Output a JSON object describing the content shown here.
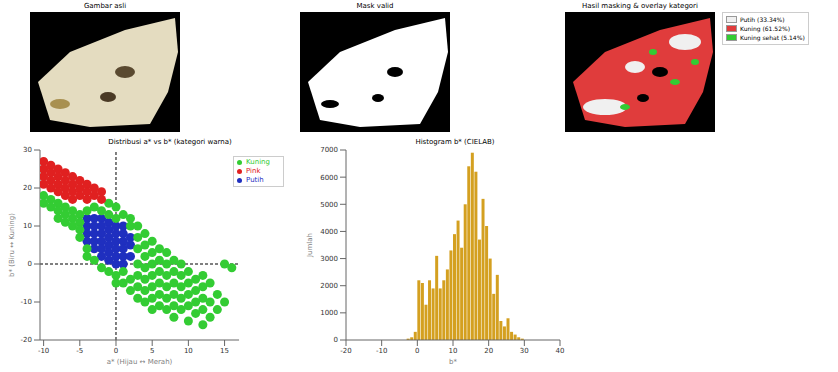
{
  "images": [
    {
      "title": "Gambar asli"
    },
    {
      "title": "Mask valid"
    },
    {
      "title": "Hasil masking & overlay kategori"
    }
  ],
  "overlay_legend": [
    {
      "label": "Putih (33.34%)",
      "color": "#f0f0f0"
    },
    {
      "label": "Kuning (61.52%)",
      "color": "#e03c3c"
    },
    {
      "label": "Kuning sehat (5.14%)",
      "color": "#33cc33"
    }
  ],
  "chart_data": [
    {
      "type": "scatter",
      "title": "Distribusi a* vs b* (kategori warna)",
      "x_label": "a* (Hijau ↔ Merah)",
      "y_label": "b* (Biru ↔ Kuning)",
      "xlim": [
        -10.5,
        17
      ],
      "xticks": [
        -10,
        -5,
        0,
        5,
        10,
        15
      ],
      "ylim": [
        -20,
        30
      ],
      "yticks": [
        -20,
        -10,
        0,
        10,
        20,
        30
      ],
      "grid": false,
      "legend": "upper right",
      "marker": "circle",
      "vlines": [
        0
      ],
      "hlines": [
        0
      ],
      "series": [
        {
          "name": "Putih",
          "color": "#1f2fbf",
          "x": [
            -4,
            -4,
            -4,
            -4,
            -3,
            -3,
            -3,
            -3,
            -3,
            -2,
            -2,
            -2,
            -2,
            -2,
            -2,
            -1,
            -1,
            -1,
            -1,
            -1,
            -1,
            0,
            0,
            0,
            0,
            0,
            0,
            1,
            1,
            1,
            1,
            1,
            1,
            2,
            2,
            2
          ],
          "y": [
            12,
            10,
            8,
            6,
            12,
            10,
            8,
            6,
            4,
            12,
            10,
            8,
            6,
            4,
            2,
            11,
            9,
            7,
            5,
            3,
            1,
            10,
            8,
            6,
            4,
            2,
            0,
            10,
            8,
            6,
            4,
            2,
            0,
            7,
            5,
            2
          ]
        },
        {
          "name": "Kuning",
          "color": "#33cc33",
          "x": [
            -10,
            -10,
            -9,
            -9,
            -8,
            -8,
            -8,
            -7,
            -7,
            -7,
            -6,
            -6,
            -6,
            -5,
            -5,
            -5,
            -5,
            -4,
            -4,
            -4,
            -3,
            -3,
            -2,
            -2,
            -1,
            -1,
            -1,
            0,
            0,
            0,
            0,
            1,
            1,
            1,
            2,
            2,
            2,
            2,
            3,
            3,
            3,
            3,
            3,
            3,
            3,
            4,
            4,
            4,
            4,
            4,
            4,
            4,
            5,
            5,
            5,
            5,
            5,
            5,
            5,
            6,
            6,
            6,
            6,
            6,
            6,
            7,
            7,
            7,
            7,
            7,
            7,
            8,
            8,
            8,
            8,
            8,
            8,
            9,
            9,
            9,
            9,
            9,
            10,
            10,
            10,
            10,
            10,
            11,
            11,
            11,
            11,
            12,
            12,
            12,
            12,
            12,
            13,
            13,
            13,
            14,
            14,
            15,
            15,
            16
          ],
          "y": [
            18,
            16,
            17,
            15,
            16,
            14,
            12,
            15,
            13,
            11,
            14,
            12,
            10,
            13,
            11,
            9,
            7,
            14,
            4,
            2,
            15,
            1,
            14,
            -1,
            16,
            13,
            -2,
            15,
            12,
            -3,
            -5,
            13,
            -2,
            -5,
            12,
            10,
            -4,
            -7,
            10,
            7,
            4,
            0,
            -3,
            -6,
            -9,
            8,
            5,
            2,
            -1,
            -4,
            -7,
            -10,
            6,
            3,
            0,
            -3,
            -6,
            -9,
            -12,
            4,
            1,
            -2,
            -5,
            -8,
            -11,
            3,
            0,
            -3,
            -6,
            -9,
            -12,
            1,
            -2,
            -5,
            -8,
            -11,
            -14,
            0,
            -3,
            -6,
            -9,
            -12,
            -2,
            -5,
            -8,
            -11,
            -15,
            -4,
            -7,
            -10,
            -13,
            -3,
            -6,
            -9,
            -12,
            -16,
            -5,
            -10,
            -14,
            -8,
            -12,
            0,
            -10,
            -1
          ]
        },
        {
          "name": "Pink",
          "color": "#e02020",
          "x": [
            -10,
            -10,
            -10,
            -10,
            -9,
            -9,
            -9,
            -9,
            -8,
            -8,
            -8,
            -8,
            -7,
            -7,
            -7,
            -7,
            -6,
            -6,
            -6,
            -6,
            -5,
            -5,
            -5,
            -4,
            -4,
            -4,
            -3,
            -3,
            -2,
            -2
          ],
          "y": [
            27,
            25,
            23,
            21,
            26,
            24,
            22,
            20,
            25,
            23,
            21,
            19,
            24,
            22,
            20,
            18,
            23,
            21,
            19,
            17,
            22,
            20,
            18,
            21,
            19,
            17,
            20,
            18,
            19,
            17
          ]
        }
      ]
    },
    {
      "type": "histogram",
      "title": "Histogram b* (CIELAB)",
      "x_label": "b*",
      "y_label": "Jumlah",
      "xlim": [
        -20,
        40
      ],
      "xticks": [
        -20,
        -10,
        0,
        10,
        20,
        30,
        40
      ],
      "ylim": [
        0,
        7000
      ],
      "yticks": [
        0,
        1000,
        2000,
        3000,
        4000,
        5000,
        6000,
        7000
      ],
      "grid": false,
      "color": "#d4a020",
      "bins": [
        -3,
        -2,
        -1,
        0,
        1,
        2,
        3,
        4,
        5,
        6,
        7,
        8,
        9,
        10,
        11,
        12,
        13,
        14,
        15,
        16,
        17,
        18,
        19,
        20,
        21,
        22,
        23,
        24,
        25,
        26,
        27,
        28,
        29,
        30
      ],
      "values": [
        50,
        100,
        300,
        2200,
        2100,
        1300,
        2200,
        1900,
        3100,
        1900,
        2200,
        2600,
        3300,
        3900,
        4400,
        3400,
        5000,
        6400,
        6900,
        6200,
        3700,
        5200,
        4200,
        3000,
        1700,
        2400,
        700,
        500,
        800,
        300,
        200,
        100,
        50
      ]
    }
  ]
}
